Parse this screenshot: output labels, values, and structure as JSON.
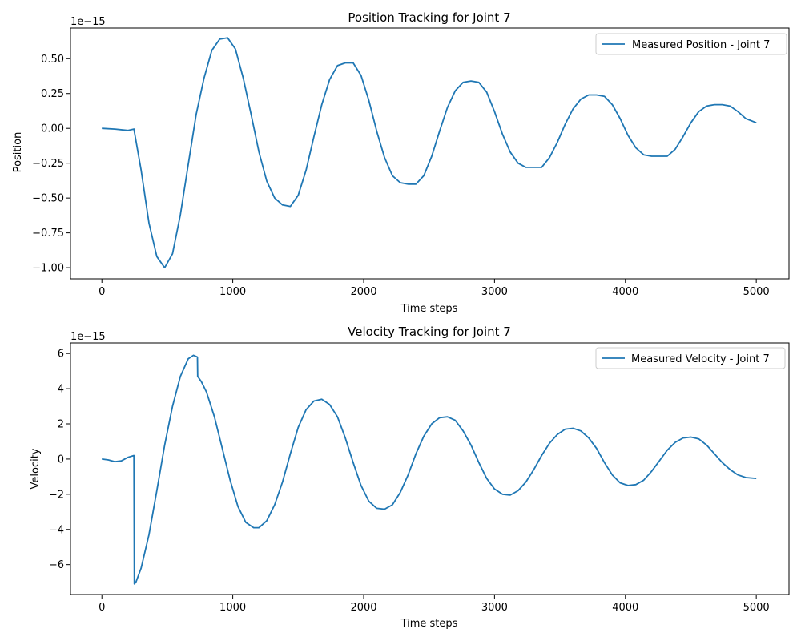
{
  "chart_data": [
    {
      "type": "line",
      "title": "Position Tracking for Joint 7",
      "xlabel": "Time steps",
      "ylabel": "Position",
      "scale_text": "1e−15",
      "xlim": [
        -240,
        5250
      ],
      "ylim": [
        -1.08,
        0.72
      ],
      "xticks": [
        0,
        1000,
        2000,
        3000,
        4000,
        5000
      ],
      "xtick_labels": [
        "0",
        "1000",
        "2000",
        "3000",
        "4000",
        "5000"
      ],
      "yticks": [
        -1.0,
        -0.75,
        -0.5,
        -0.25,
        0.0,
        0.25,
        0.5
      ],
      "ytick_labels": [
        "−1.00",
        "−0.75",
        "−0.50",
        "−0.25",
        "0.00",
        "0.25",
        "0.50"
      ],
      "grid": false,
      "legend_position": "top-right",
      "series": [
        {
          "name": "Measured Position - Joint 7",
          "color": "#1f77b4",
          "x": [
            0,
            100,
            200,
            245,
            300,
            360,
            420,
            480,
            540,
            600,
            660,
            720,
            780,
            840,
            900,
            960,
            1020,
            1080,
            1140,
            1200,
            1260,
            1320,
            1380,
            1440,
            1500,
            1560,
            1620,
            1680,
            1740,
            1800,
            1860,
            1920,
            1980,
            2040,
            2100,
            2160,
            2220,
            2280,
            2340,
            2400,
            2460,
            2520,
            2580,
            2640,
            2700,
            2760,
            2820,
            2880,
            2940,
            3000,
            3060,
            3120,
            3180,
            3240,
            3300,
            3360,
            3420,
            3480,
            3540,
            3600,
            3660,
            3720,
            3780,
            3840,
            3900,
            3960,
            4020,
            4080,
            4140,
            4200,
            4260,
            4320,
            4380,
            4440,
            4500,
            4560,
            4620,
            4680,
            4740,
            4800,
            4860,
            4920,
            5000
          ],
          "y": [
            0.0,
            -0.005,
            -0.015,
            -0.005,
            -0.3,
            -0.68,
            -0.92,
            -1.0,
            -0.9,
            -0.62,
            -0.26,
            0.1,
            0.36,
            0.56,
            0.64,
            0.65,
            0.57,
            0.36,
            0.1,
            -0.17,
            -0.38,
            -0.5,
            -0.55,
            -0.56,
            -0.48,
            -0.3,
            -0.06,
            0.17,
            0.35,
            0.45,
            0.47,
            0.47,
            0.38,
            0.2,
            -0.02,
            -0.21,
            -0.34,
            -0.39,
            -0.4,
            -0.4,
            -0.34,
            -0.2,
            -0.02,
            0.15,
            0.27,
            0.33,
            0.34,
            0.33,
            0.26,
            0.12,
            -0.04,
            -0.17,
            -0.25,
            -0.28,
            -0.28,
            -0.28,
            -0.21,
            -0.1,
            0.03,
            0.14,
            0.21,
            0.24,
            0.24,
            0.23,
            0.17,
            0.07,
            -0.05,
            -0.14,
            -0.19,
            -0.2,
            -0.2,
            -0.2,
            -0.15,
            -0.06,
            0.04,
            0.12,
            0.16,
            0.17,
            0.17,
            0.16,
            0.12,
            0.07,
            0.04
          ]
        }
      ]
    },
    {
      "type": "line",
      "title": "Velocity Tracking for Joint 7",
      "xlabel": "Time steps",
      "ylabel": "Velocity",
      "scale_text": "1e−15",
      "xlim": [
        -240,
        5250
      ],
      "ylim": [
        -7.7,
        6.6
      ],
      "xticks": [
        0,
        1000,
        2000,
        3000,
        4000,
        5000
      ],
      "xtick_labels": [
        "0",
        "1000",
        "2000",
        "3000",
        "4000",
        "5000"
      ],
      "yticks": [
        -6,
        -4,
        -2,
        0,
        2,
        4,
        6
      ],
      "ytick_labels": [
        "−6",
        "−4",
        "−2",
        "0",
        "2",
        "4",
        "6"
      ],
      "grid": false,
      "legend_position": "top-right",
      "series": [
        {
          "name": "Measured Velocity - Joint 7",
          "color": "#1f77b4",
          "x": [
            0,
            50,
            100,
            150,
            200,
            245,
            248,
            260,
            300,
            360,
            420,
            480,
            540,
            600,
            660,
            700,
            730,
            732,
            760,
            800,
            860,
            920,
            980,
            1040,
            1100,
            1160,
            1200,
            1260,
            1320,
            1380,
            1440,
            1500,
            1560,
            1620,
            1680,
            1740,
            1800,
            1860,
            1920,
            1980,
            2040,
            2100,
            2160,
            2220,
            2280,
            2340,
            2400,
            2460,
            2520,
            2580,
            2640,
            2700,
            2760,
            2820,
            2880,
            2940,
            3000,
            3060,
            3120,
            3180,
            3240,
            3300,
            3360,
            3420,
            3480,
            3540,
            3600,
            3660,
            3720,
            3780,
            3840,
            3900,
            3960,
            4020,
            4080,
            4140,
            4200,
            4260,
            4320,
            4380,
            4440,
            4500,
            4560,
            4620,
            4680,
            4740,
            4800,
            4860,
            4920,
            5000
          ],
          "y": [
            0.0,
            -0.05,
            -0.15,
            -0.1,
            0.1,
            0.2,
            -7.1,
            -7.0,
            -6.2,
            -4.3,
            -1.8,
            0.8,
            3.0,
            4.7,
            5.7,
            5.9,
            5.8,
            4.7,
            4.4,
            3.8,
            2.4,
            0.6,
            -1.2,
            -2.7,
            -3.6,
            -3.9,
            -3.9,
            -3.5,
            -2.6,
            -1.3,
            0.3,
            1.8,
            2.8,
            3.3,
            3.4,
            3.1,
            2.4,
            1.2,
            -0.2,
            -1.5,
            -2.4,
            -2.8,
            -2.85,
            -2.6,
            -1.9,
            -0.9,
            0.3,
            1.3,
            2.0,
            2.35,
            2.4,
            2.2,
            1.6,
            0.8,
            -0.2,
            -1.1,
            -1.7,
            -2.0,
            -2.05,
            -1.8,
            -1.3,
            -0.6,
            0.2,
            0.9,
            1.4,
            1.7,
            1.75,
            1.6,
            1.2,
            0.6,
            -0.2,
            -0.9,
            -1.35,
            -1.5,
            -1.45,
            -1.2,
            -0.7,
            -0.1,
            0.5,
            0.95,
            1.2,
            1.25,
            1.15,
            0.8,
            0.3,
            -0.2,
            -0.6,
            -0.9,
            -1.05,
            -1.1
          ]
        }
      ]
    }
  ]
}
